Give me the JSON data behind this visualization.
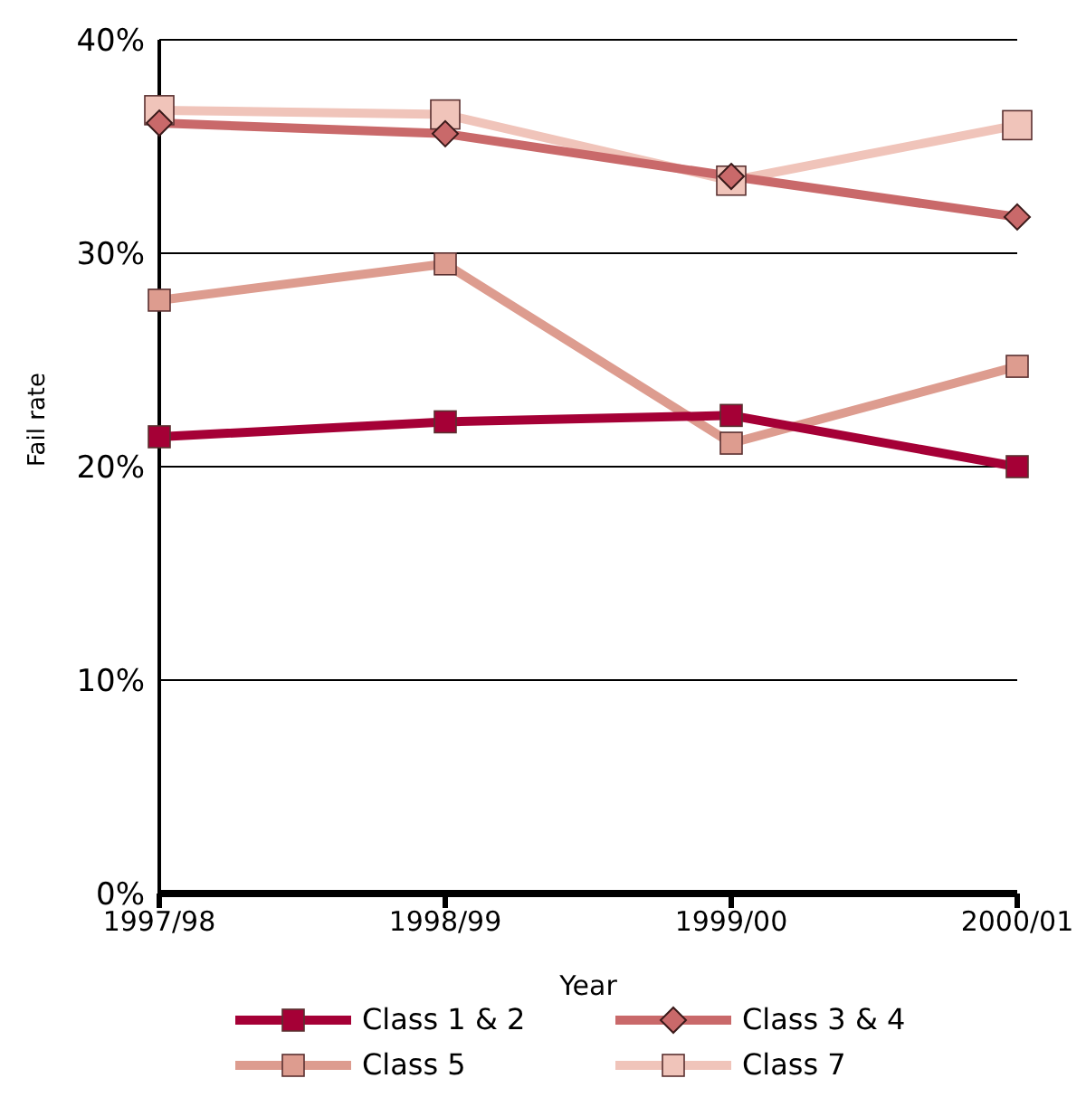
{
  "chart_data": {
    "type": "line",
    "xlabel": "Year",
    "ylabel": "Fail rate",
    "categories": [
      "1997/98",
      "1998/99",
      "1999/00",
      "2000/01"
    ],
    "series": [
      {
        "name": "Class 1 & 2",
        "color": "#a50036",
        "marker": "square",
        "values": [
          21.4,
          22.1,
          22.4,
          20.0
        ]
      },
      {
        "name": "Class 3 & 4",
        "color": "#c9696a",
        "marker": "diamond",
        "values": [
          36.1,
          35.6,
          33.6,
          31.7
        ]
      },
      {
        "name": "Class 5",
        "color": "#dd9c8f",
        "marker": "square",
        "values": [
          27.8,
          29.5,
          21.1,
          24.7
        ]
      },
      {
        "name": "Class 7",
        "color": "#f0c4ba",
        "marker": "square",
        "values": [
          36.7,
          36.5,
          33.4,
          36.0
        ]
      }
    ],
    "ylim": [
      0,
      40
    ],
    "yticks": [
      {
        "value": 0,
        "label": "0%"
      },
      {
        "value": 10,
        "label": "10%"
      },
      {
        "value": 20,
        "label": "20%"
      },
      {
        "value": 30,
        "label": "30%"
      },
      {
        "value": 40,
        "label": "40%"
      }
    ],
    "grid": "y",
    "legend": "bottom",
    "line_style": "solid"
  }
}
